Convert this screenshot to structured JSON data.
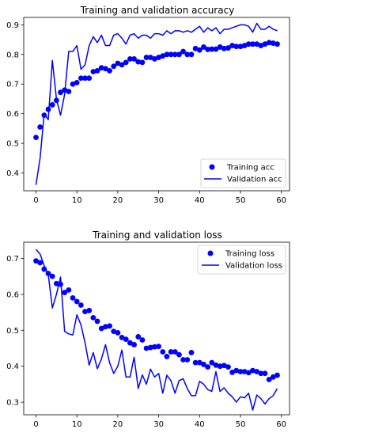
{
  "chart_data": [
    {
      "type": "line",
      "title": "Training and validation accuracy",
      "xlabel": "",
      "ylabel": "",
      "xlim": [
        -3,
        62
      ],
      "ylim": [
        0.34,
        0.925
      ],
      "xticks": [
        0,
        10,
        20,
        30,
        40,
        50,
        60
      ],
      "yticks": [
        0.4,
        0.5,
        0.6,
        0.7,
        0.8,
        0.9
      ],
      "ytick_labels": [
        "0.4",
        "0.5",
        "0.6",
        "0.7",
        "0.8",
        "0.9"
      ],
      "legend_position": "lower-right",
      "grid": false,
      "series": [
        {
          "name": "Training acc",
          "style": "dots",
          "color": "#0000ff",
          "x": [
            0,
            1,
            2,
            3,
            4,
            5,
            6,
            7,
            8,
            9,
            10,
            11,
            12,
            13,
            14,
            15,
            16,
            17,
            18,
            19,
            20,
            21,
            22,
            23,
            24,
            25,
            26,
            27,
            28,
            29,
            30,
            31,
            32,
            33,
            34,
            35,
            36,
            37,
            38,
            39,
            40,
            41,
            42,
            43,
            44,
            45,
            46,
            47,
            48,
            49,
            50,
            51,
            52,
            53,
            54,
            55,
            56,
            57,
            58,
            59
          ],
          "values": [
            0.52,
            0.555,
            0.595,
            0.615,
            0.63,
            0.645,
            0.672,
            0.68,
            0.675,
            0.7,
            0.705,
            0.72,
            0.72,
            0.72,
            0.742,
            0.745,
            0.755,
            0.752,
            0.745,
            0.76,
            0.77,
            0.765,
            0.773,
            0.785,
            0.785,
            0.775,
            0.773,
            0.79,
            0.79,
            0.785,
            0.79,
            0.795,
            0.8,
            0.8,
            0.8,
            0.8,
            0.81,
            0.8,
            0.8,
            0.82,
            0.815,
            0.825,
            0.817,
            0.818,
            0.818,
            0.825,
            0.82,
            0.822,
            0.83,
            0.827,
            0.827,
            0.83,
            0.835,
            0.835,
            0.835,
            0.83,
            0.835,
            0.84,
            0.838,
            0.835
          ]
        },
        {
          "name": "Validation acc",
          "style": "line",
          "color": "#0000ff",
          "x": [
            0,
            1,
            2,
            3,
            4,
            5,
            6,
            7,
            8,
            9,
            10,
            11,
            12,
            13,
            14,
            15,
            16,
            17,
            18,
            19,
            20,
            21,
            22,
            23,
            24,
            25,
            26,
            27,
            28,
            29,
            30,
            31,
            32,
            33,
            34,
            35,
            36,
            37,
            38,
            39,
            40,
            41,
            42,
            43,
            44,
            45,
            46,
            47,
            48,
            49,
            50,
            51,
            52,
            53,
            54,
            55,
            56,
            57,
            58,
            59
          ],
          "values": [
            0.36,
            0.45,
            0.6,
            0.58,
            0.78,
            0.65,
            0.595,
            0.665,
            0.81,
            0.81,
            0.83,
            0.75,
            0.765,
            0.83,
            0.86,
            0.84,
            0.865,
            0.83,
            0.83,
            0.865,
            0.87,
            0.855,
            0.835,
            0.865,
            0.87,
            0.855,
            0.865,
            0.865,
            0.855,
            0.87,
            0.87,
            0.865,
            0.88,
            0.87,
            0.88,
            0.88,
            0.875,
            0.88,
            0.875,
            0.885,
            0.895,
            0.875,
            0.89,
            0.88,
            0.89,
            0.87,
            0.885,
            0.885,
            0.89,
            0.895,
            0.9,
            0.9,
            0.895,
            0.875,
            0.905,
            0.885,
            0.885,
            0.895,
            0.885,
            0.88
          ]
        }
      ]
    },
    {
      "type": "line",
      "title": "Training and validation loss",
      "xlabel": "",
      "ylabel": "",
      "xlim": [
        -3,
        62
      ],
      "ylim": [
        0.265,
        0.745
      ],
      "xticks": [
        0,
        10,
        20,
        30,
        40,
        50,
        60
      ],
      "yticks": [
        0.3,
        0.4,
        0.5,
        0.6,
        0.7
      ],
      "ytick_labels": [
        "0.3",
        "0.4",
        "0.5",
        "0.6",
        "0.7"
      ],
      "legend_position": "upper-right",
      "grid": false,
      "series": [
        {
          "name": "Training loss",
          "style": "dots",
          "color": "#0000ff",
          "x": [
            0,
            1,
            2,
            3,
            4,
            5,
            6,
            7,
            8,
            9,
            10,
            11,
            12,
            13,
            14,
            15,
            16,
            17,
            18,
            19,
            20,
            21,
            22,
            23,
            24,
            25,
            26,
            27,
            28,
            29,
            30,
            31,
            32,
            33,
            34,
            35,
            36,
            37,
            38,
            39,
            40,
            41,
            42,
            43,
            44,
            45,
            46,
            47,
            48,
            49,
            50,
            51,
            52,
            53,
            54,
            55,
            56,
            57,
            58,
            59
          ],
          "values": [
            0.693,
            0.688,
            0.67,
            0.658,
            0.65,
            0.63,
            0.628,
            0.605,
            0.612,
            0.59,
            0.58,
            0.57,
            0.552,
            0.555,
            0.535,
            0.525,
            0.505,
            0.51,
            0.512,
            0.497,
            0.493,
            0.48,
            0.475,
            0.465,
            0.46,
            0.482,
            0.473,
            0.45,
            0.452,
            0.454,
            0.455,
            0.44,
            0.427,
            0.44,
            0.44,
            0.432,
            0.418,
            0.418,
            0.438,
            0.41,
            0.41,
            0.405,
            0.398,
            0.41,
            0.403,
            0.4,
            0.402,
            0.398,
            0.383,
            0.388,
            0.385,
            0.385,
            0.382,
            0.388,
            0.385,
            0.38,
            0.38,
            0.363,
            0.37,
            0.375
          ]
        },
        {
          "name": "Validation loss",
          "style": "line",
          "color": "#0000ff",
          "x": [
            0,
            1,
            2,
            3,
            4,
            5,
            6,
            7,
            8,
            9,
            10,
            11,
            12,
            13,
            14,
            15,
            16,
            17,
            18,
            19,
            20,
            21,
            22,
            23,
            24,
            25,
            26,
            27,
            28,
            29,
            30,
            31,
            32,
            33,
            34,
            35,
            36,
            37,
            38,
            39,
            40,
            41,
            42,
            43,
            44,
            45,
            46,
            47,
            48,
            49,
            50,
            51,
            52,
            53,
            54,
            55,
            56,
            57,
            58,
            59
          ],
          "values": [
            0.725,
            0.712,
            0.68,
            0.655,
            0.562,
            0.6,
            0.648,
            0.497,
            0.49,
            0.487,
            0.543,
            0.515,
            0.465,
            0.403,
            0.438,
            0.393,
            0.42,
            0.46,
            0.41,
            0.38,
            0.4,
            0.445,
            0.37,
            0.37,
            0.425,
            0.338,
            0.376,
            0.35,
            0.392,
            0.37,
            0.38,
            0.325,
            0.375,
            0.36,
            0.325,
            0.36,
            0.365,
            0.338,
            0.318,
            0.318,
            0.358,
            0.35,
            0.335,
            0.33,
            0.385,
            0.33,
            0.34,
            0.325,
            0.315,
            0.3,
            0.315,
            0.312,
            0.325,
            0.278,
            0.32,
            0.31,
            0.295,
            0.31,
            0.318,
            0.338
          ]
        }
      ]
    }
  ]
}
